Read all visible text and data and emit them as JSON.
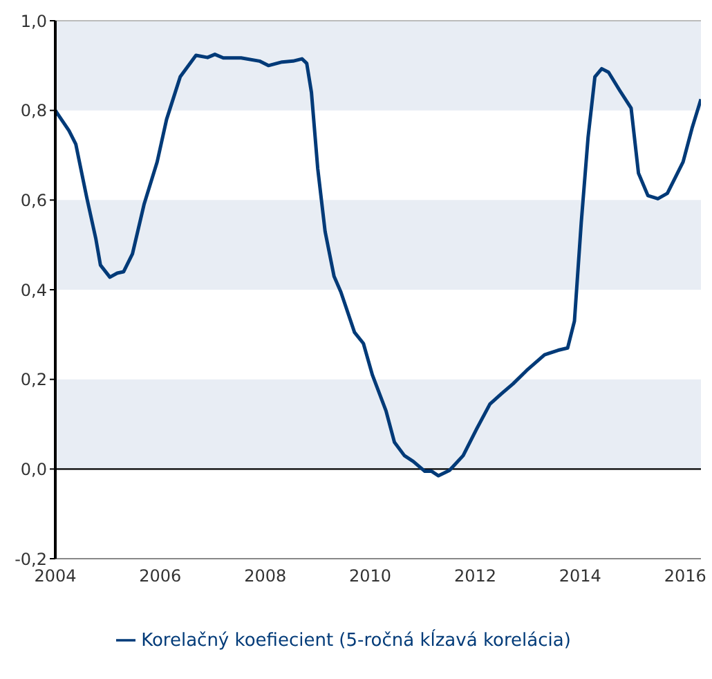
{
  "chart_data": {
    "type": "line",
    "x": [
      2004.0,
      2004.26,
      2004.39,
      2004.6,
      2004.77,
      2004.86,
      2005.04,
      2005.18,
      2005.3,
      2005.47,
      2005.69,
      2005.94,
      2006.12,
      2006.38,
      2006.68,
      2006.9,
      2007.04,
      2007.2,
      2007.54,
      2007.89,
      2008.06,
      2008.32,
      2008.53,
      2008.7,
      2008.79,
      2008.88,
      2009.0,
      2009.14,
      2009.31,
      2009.44,
      2009.7,
      2009.87,
      2010.04,
      2010.3,
      2010.46,
      2010.65,
      2010.82,
      2011.04,
      2011.17,
      2011.3,
      2011.51,
      2011.77,
      2012.03,
      2012.28,
      2012.5,
      2012.72,
      2012.98,
      2013.32,
      2013.58,
      2013.76,
      2013.89,
      2014.02,
      2014.15,
      2014.28,
      2014.41,
      2014.54,
      2014.75,
      2014.97,
      2015.11,
      2015.29,
      2015.48,
      2015.66,
      2015.96,
      2016.13,
      2016.3
    ],
    "series": [
      {
        "name": "Korelačný koefiecient (5-ročná kĺzavá korelácia)",
        "color": "#003a78",
        "values": [
          0.8,
          0.755,
          0.725,
          0.605,
          0.515,
          0.455,
          0.428,
          0.437,
          0.44,
          0.48,
          0.59,
          0.685,
          0.78,
          0.875,
          0.923,
          0.918,
          0.925,
          0.917,
          0.917,
          0.91,
          0.9,
          0.908,
          0.91,
          0.915,
          0.905,
          0.84,
          0.67,
          0.53,
          0.43,
          0.395,
          0.305,
          0.28,
          0.21,
          0.13,
          0.06,
          0.03,
          0.017,
          -0.005,
          -0.005,
          -0.015,
          -0.003,
          0.03,
          0.09,
          0.145,
          0.168,
          0.19,
          0.22,
          0.255,
          0.265,
          0.27,
          0.33,
          0.55,
          0.74,
          0.875,
          0.893,
          0.885,
          0.845,
          0.805,
          0.66,
          0.61,
          0.603,
          0.615,
          0.685,
          0.76,
          0.825
        ]
      }
    ],
    "xlim": [
      2004,
      2016.3
    ],
    "xticks": [
      2004,
      2006,
      2008,
      2010,
      2012,
      2014,
      2016
    ],
    "ylim": [
      -0.2,
      1.0
    ],
    "yticks": [
      {
        "value": -0.2,
        "label": "-0,2"
      },
      {
        "value": 0,
        "label": "0,0"
      },
      {
        "value": 0.2,
        "label": "0,2"
      },
      {
        "value": 0.4,
        "label": "0,4"
      },
      {
        "value": 0.6,
        "label": "0,6"
      },
      {
        "value": 0.8,
        "label": "0,8"
      },
      {
        "value": 1.0,
        "label": "1,0"
      }
    ],
    "bands": [
      {
        "axis": "y",
        "from": 0.8,
        "to": 1.0,
        "color": "#e8edf4"
      },
      {
        "axis": "y",
        "from": 0.4,
        "to": 0.6,
        "color": "#e8edf4"
      },
      {
        "axis": "y",
        "from": 0,
        "to": 0.2,
        "color": "#e8edf4"
      }
    ],
    "ref_lines": [
      {
        "axis": "y",
        "value": 0,
        "color": "#000000"
      }
    ],
    "grid": false,
    "legend": "bottom",
    "marker": "none",
    "line_style": "solid"
  }
}
